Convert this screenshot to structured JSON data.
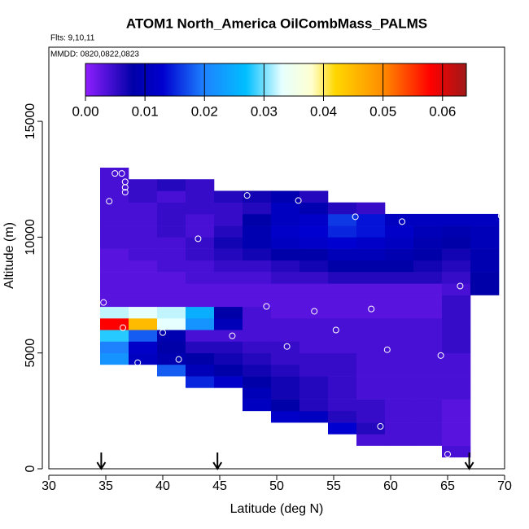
{
  "chart_data": {
    "type": "heatmap",
    "title": "ATOM1 North_America OilCombMass_PALMS",
    "flights_note": "Flts: 9,10,11",
    "dates_note": "MMDD: 0820,0822,0823",
    "x_label": "Latitude (deg N)",
    "y_label": "Altitude (m)",
    "xlim": [
      30,
      70
    ],
    "xticks": [
      30,
      35,
      40,
      45,
      50,
      55,
      60,
      65,
      70
    ],
    "ylim": [
      0,
      18200
    ],
    "yticks": [
      0,
      5000,
      10000,
      15000
    ],
    "lat_edges": [
      34.5,
      37,
      39.5,
      42,
      44.5,
      47,
      49.5,
      52,
      54.5,
      57,
      59.5,
      62,
      64.5,
      67,
      69.5
    ],
    "alt_edges": [
      500,
      1000,
      1500,
      2000,
      2500,
      3000,
      3500,
      4000,
      4500,
      5000,
      5500,
      6000,
      6500,
      7000,
      7500,
      8000,
      8500,
      9000,
      9500,
      10000,
      10500,
      11000,
      11500,
      12000,
      12500,
      13000
    ],
    "z": [
      [
        null,
        null,
        null,
        null,
        null,
        null,
        null,
        null,
        null,
        null,
        null,
        null,
        0.004,
        null
      ],
      [
        null,
        null,
        null,
        null,
        null,
        null,
        null,
        null,
        null,
        0.004,
        0.004,
        0.004,
        0.003,
        null
      ],
      [
        null,
        null,
        null,
        null,
        null,
        null,
        null,
        null,
        0.013,
        0.006,
        0.004,
        0.004,
        0.003,
        null
      ],
      [
        null,
        null,
        null,
        null,
        null,
        null,
        0.012,
        0.011,
        0.006,
        0.005,
        0.004,
        0.004,
        0.003,
        null
      ],
      [
        null,
        null,
        null,
        null,
        null,
        0.011,
        0.008,
        0.006,
        0.005,
        0.005,
        0.004,
        0.004,
        0.003,
        null
      ],
      [
        null,
        null,
        null,
        null,
        null,
        0.01,
        0.007,
        0.006,
        0.005,
        0.004,
        0.004,
        0.004,
        0.004,
        null
      ],
      [
        null,
        null,
        null,
        0.015,
        0.012,
        0.008,
        0.007,
        0.006,
        0.005,
        0.004,
        0.004,
        0.004,
        0.004,
        null
      ],
      [
        null,
        null,
        0.018,
        0.01,
        0.008,
        0.007,
        0.006,
        0.005,
        0.005,
        0.004,
        0.004,
        0.004,
        0.004,
        null
      ],
      [
        0.022,
        0.011,
        0.009,
        0.008,
        0.007,
        0.006,
        0.005,
        0.005,
        0.005,
        0.004,
        0.004,
        0.004,
        0.004,
        null
      ],
      [
        0.02,
        0.012,
        0.008,
        0.006,
        0.006,
        0.005,
        0.005,
        0.004,
        0.004,
        0.004,
        0.004,
        0.004,
        0.005,
        null
      ],
      [
        0.028,
        0.018,
        0.009,
        0.004,
        0.004,
        0.004,
        0.004,
        0.004,
        0.004,
        0.004,
        0.004,
        0.004,
        0.005,
        null
      ],
      [
        0.058,
        0.045,
        0.033,
        0.022,
        0.01,
        0.004,
        0.004,
        0.004,
        0.004,
        0.004,
        0.004,
        0.004,
        0.005,
        null
      ],
      [
        0.032,
        0.033,
        0.032,
        0.025,
        0.008,
        0.004,
        0.003,
        0.003,
        0.003,
        0.003,
        0.003,
        0.003,
        0.005,
        null
      ],
      [
        0.003,
        0.003,
        0.003,
        0.003,
        0.003,
        0.003,
        0.003,
        0.003,
        0.003,
        0.003,
        0.003,
        0.003,
        0.005,
        null
      ],
      [
        0.003,
        0.003,
        0.003,
        0.003,
        0.003,
        0.003,
        0.003,
        0.003,
        0.003,
        0.003,
        0.003,
        0.003,
        0.004,
        0.008
      ],
      [
        0.003,
        0.003,
        0.003,
        0.004,
        0.004,
        0.004,
        0.005,
        0.005,
        0.006,
        0.006,
        0.006,
        0.006,
        0.005,
        0.008
      ],
      [
        0.003,
        0.003,
        0.004,
        0.004,
        0.005,
        0.005,
        0.006,
        0.007,
        0.008,
        0.008,
        0.008,
        0.007,
        0.006,
        0.009
      ],
      [
        0.003,
        0.004,
        0.004,
        0.005,
        0.006,
        0.007,
        0.008,
        0.008,
        0.01,
        0.01,
        0.009,
        0.008,
        0.007,
        0.009
      ],
      [
        0.004,
        0.004,
        0.004,
        0.005,
        0.007,
        0.009,
        0.011,
        0.012,
        0.013,
        0.012,
        0.011,
        0.009,
        0.008,
        0.01
      ],
      [
        0.004,
        0.004,
        0.005,
        0.004,
        0.006,
        0.009,
        0.012,
        0.013,
        0.015,
        0.014,
        0.012,
        0.01,
        0.009,
        0.01
      ],
      [
        0.004,
        0.004,
        0.005,
        0.004,
        0.005,
        0.008,
        0.011,
        0.012,
        0.016,
        0.014,
        0.011,
        0.011,
        0.011,
        0.011
      ],
      [
        0.004,
        0.004,
        0.005,
        0.005,
        0.005,
        0.006,
        0.011,
        0.009,
        0.006,
        0.005,
        null,
        null,
        null,
        null
      ],
      [
        0.004,
        0.005,
        0.004,
        0.005,
        0.006,
        0.007,
        0.009,
        0.006,
        null,
        null,
        null,
        null,
        null,
        null
      ],
      [
        0.004,
        0.005,
        0.006,
        0.005,
        null,
        null,
        null,
        null,
        null,
        null,
        null,
        null,
        null,
        null
      ],
      [
        0.004,
        null,
        null,
        null,
        null,
        null,
        null,
        null,
        null,
        null,
        null,
        null,
        null,
        null
      ]
    ],
    "zlim": [
      0,
      0.064
    ],
    "zticks": [
      {
        "value": 0,
        "label": "0.00"
      },
      {
        "value": 0.01,
        "label": "0.01"
      },
      {
        "value": 0.02,
        "label": "0.02"
      },
      {
        "value": 0.03,
        "label": "0.03"
      },
      {
        "value": 0.04,
        "label": "0.04"
      },
      {
        "value": 0.05,
        "label": "0.05"
      },
      {
        "value": 0.06,
        "label": "0.06"
      }
    ],
    "colorscale": [
      [
        0,
        "#8f1fff"
      ],
      [
        0.008,
        "#0000a8"
      ],
      [
        0.013,
        "#0000d0"
      ],
      [
        0.02,
        "#1e82ff"
      ],
      [
        0.027,
        "#00bfff"
      ],
      [
        0.033,
        "#e6ffff"
      ],
      [
        0.038,
        "#ffffd0"
      ],
      [
        0.042,
        "#ffd700"
      ],
      [
        0.05,
        "#ff8c00"
      ],
      [
        0.058,
        "#ff0000"
      ],
      [
        0.064,
        "#a01818"
      ]
    ],
    "points": {
      "x": [
        35.8,
        36.4,
        36.7,
        36.7,
        36.7,
        35.3,
        47.4,
        51.9,
        43.1,
        56.9,
        61.0,
        69.7,
        66.1,
        34.8,
        49.1,
        53.3,
        58.3,
        36.5,
        40.0,
        55.2,
        46.1,
        50.9,
        59.7,
        64.4,
        41.4,
        37.8,
        59.1,
        65.0
      ],
      "y": [
        12750,
        12750,
        12390,
        12150,
        11940,
        11550,
        11800,
        11580,
        9930,
        10880,
        10670,
        10920,
        7890,
        7180,
        7010,
        6800,
        6900,
        6090,
        5880,
        5990,
        5740,
        5280,
        5140,
        4890,
        4720,
        4580,
        1830,
        630
      ]
    },
    "arrows": [
      34.6,
      44.8,
      66.9
    ]
  }
}
